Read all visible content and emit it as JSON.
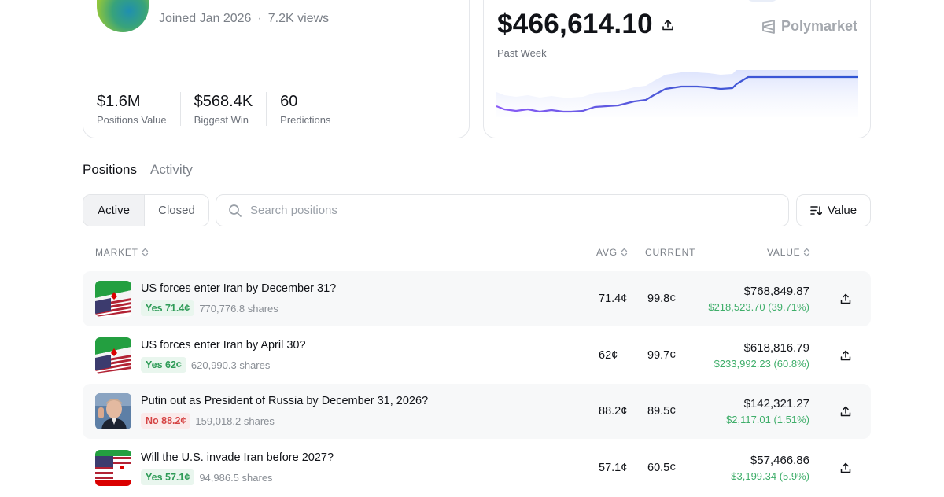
{
  "profile": {
    "joined": "Joined Jan 2026",
    "views": "7.2K views",
    "stats": [
      {
        "value": "$1.6M",
        "label": "Positions Value"
      },
      {
        "value": "$568.4K",
        "label": "Biggest Win"
      },
      {
        "value": "60",
        "label": "Predictions"
      }
    ]
  },
  "pnl": {
    "amount": "$466,614.10",
    "period": "Past Week",
    "brand": "Polymarket",
    "colors": {
      "start": "#8b5cf6",
      "end": "#2f55d4"
    }
  },
  "tabs": [
    "Positions",
    "Activity"
  ],
  "filters": {
    "segments": [
      "Active",
      "Closed"
    ],
    "search_placeholder": "Search positions",
    "sort_label": "Value"
  },
  "table": {
    "headers": {
      "market": "MARKET",
      "avg": "AVG",
      "current": "CURRENT",
      "value": "VALUE"
    },
    "rows": [
      {
        "title": "US forces enter Iran by December 31?",
        "side": "Yes 71.4¢",
        "side_type": "yes",
        "shares": "770,776.8 shares",
        "avg": "71.4¢",
        "current": "99.8¢",
        "value": "$768,849.87",
        "pnl": "$218,523.70 (39.71%)",
        "icon": "us-iran-flag-icon"
      },
      {
        "title": "US forces enter Iran by April 30?",
        "side": "Yes 62¢",
        "side_type": "yes",
        "shares": "620,990.3 shares",
        "avg": "62¢",
        "current": "99.7¢",
        "value": "$618,816.79",
        "pnl": "$233,992.23 (60.8%)",
        "icon": "us-iran-flag-icon"
      },
      {
        "title": "Putin out as President of Russia by December 31, 2026?",
        "side": "No 88.2¢",
        "side_type": "no",
        "shares": "159,018.2 shares",
        "avg": "88.2¢",
        "current": "89.5¢",
        "value": "$142,321.27",
        "pnl": "$2,117.01 (1.51%)",
        "icon": "putin-photo-icon"
      },
      {
        "title": "Will the U.S. invade Iran before 2027?",
        "side": "Yes 57.1¢",
        "side_type": "yes",
        "shares": "94,986.5 shares",
        "avg": "57.1¢",
        "current": "60.5¢",
        "value": "$57,466.86",
        "pnl": "$3,199.34 (5.9%)",
        "icon": "us-iran-flag-icon"
      }
    ]
  }
}
